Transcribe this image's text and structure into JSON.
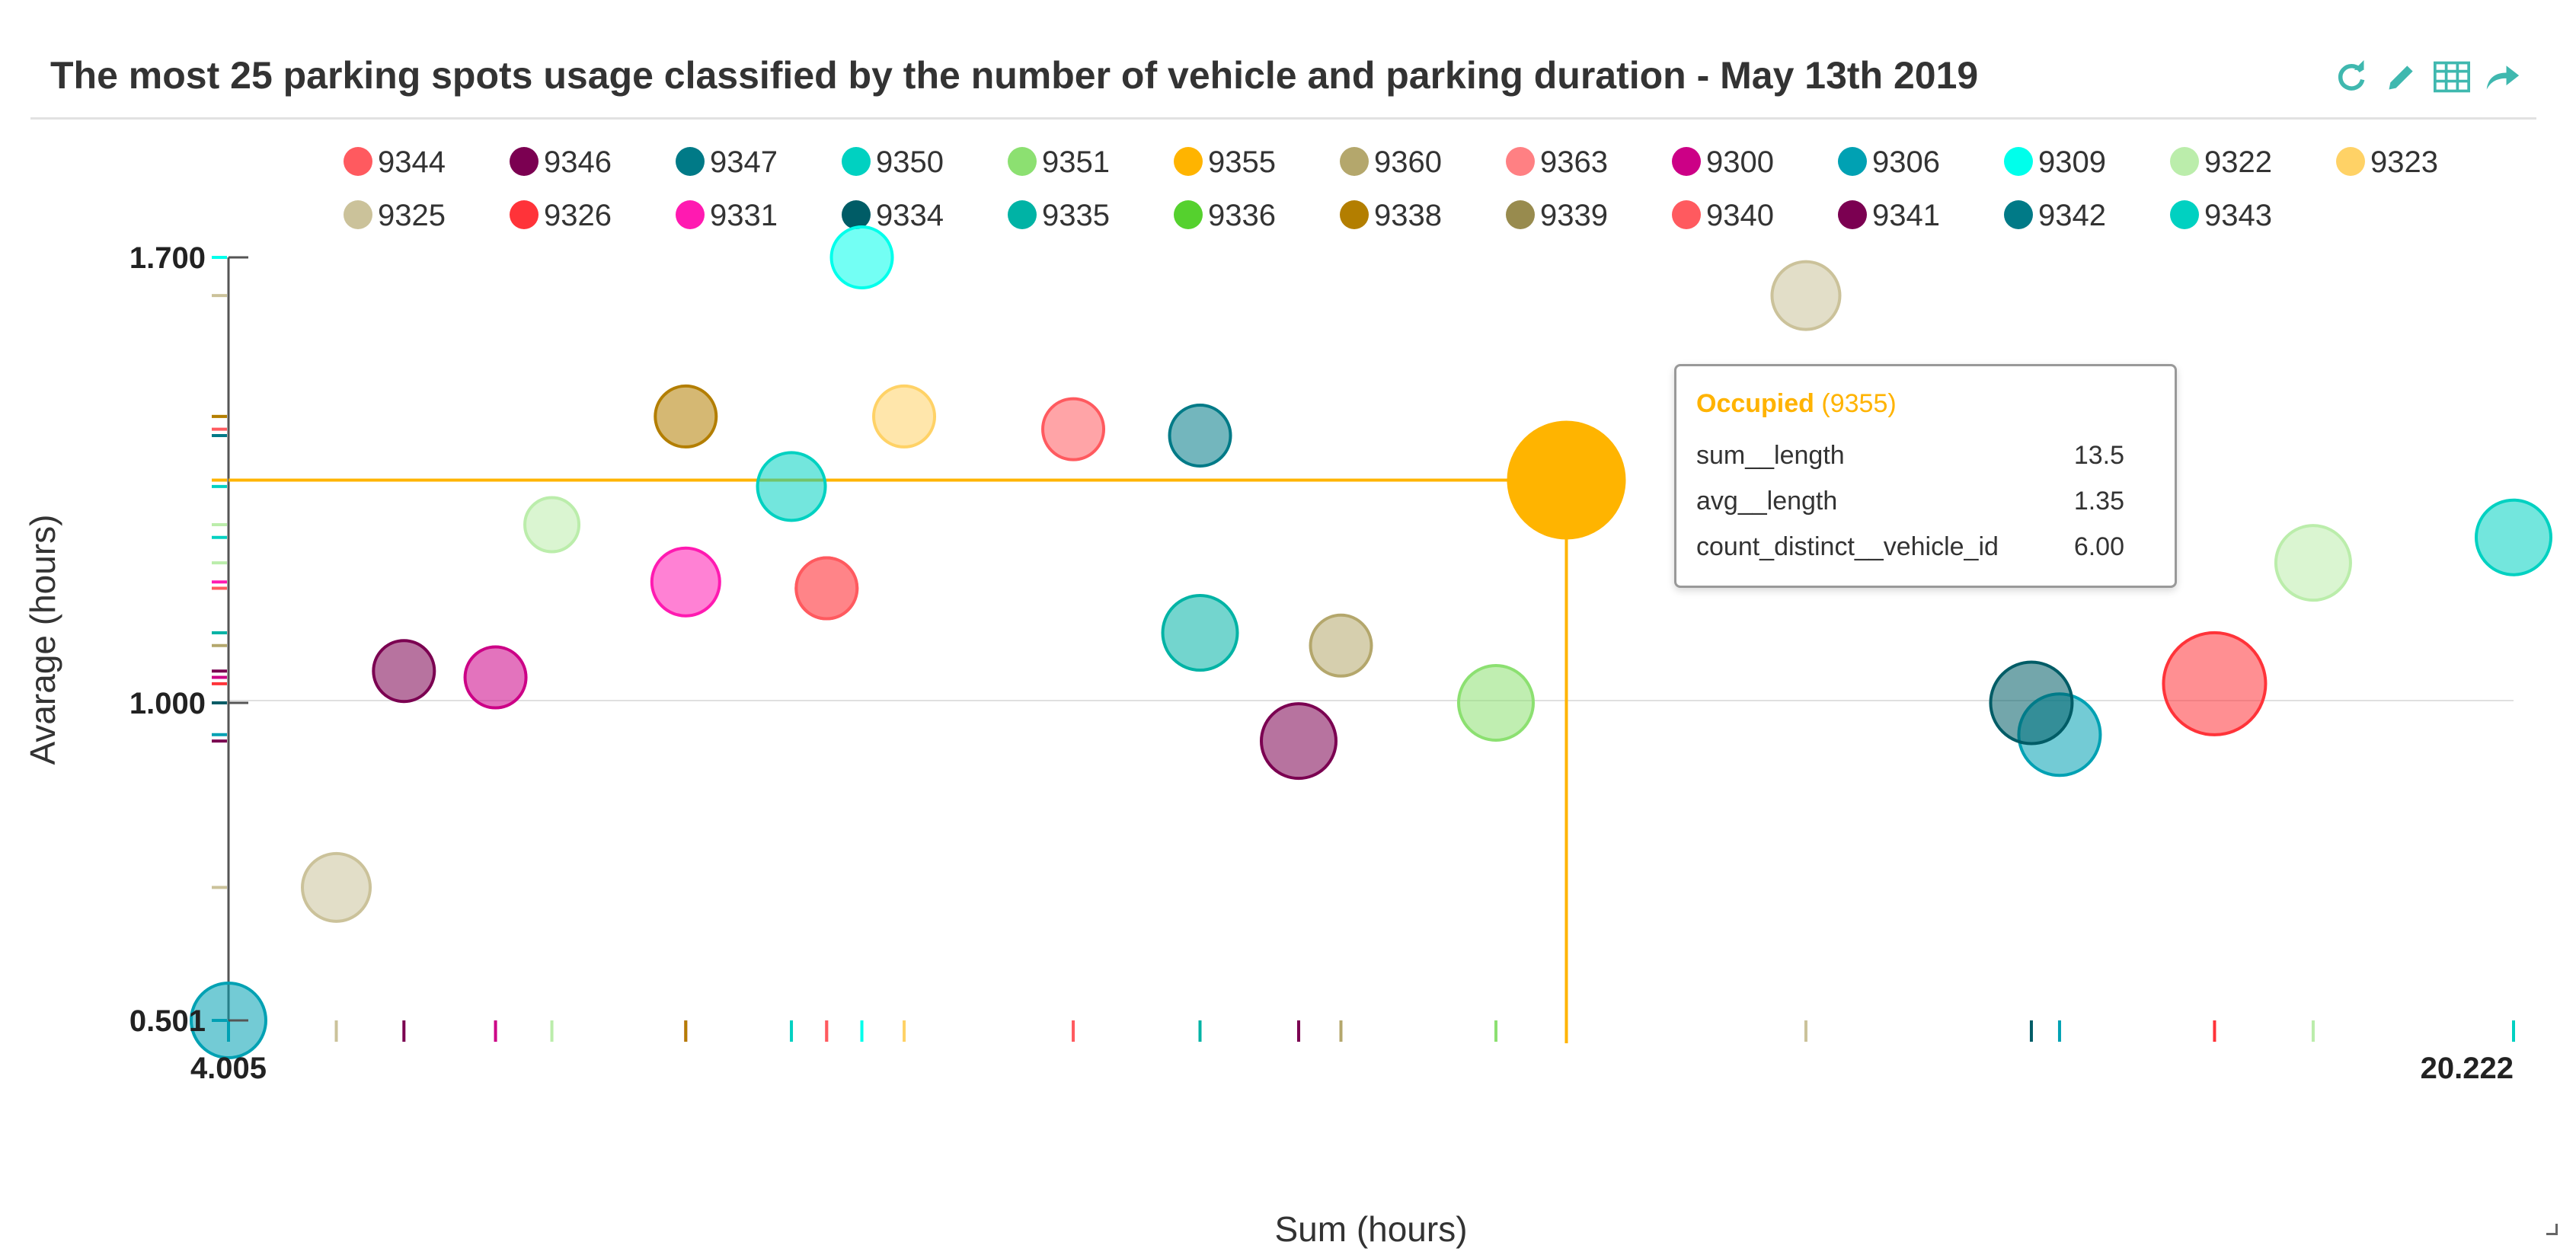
{
  "title": "The most 25 parking spots usage classified by the number of vehicle and parking duration - May 13th 2019",
  "toolbar": [
    {
      "name": "refresh-icon",
      "color": "#3fb8af"
    },
    {
      "name": "edit-pencil-icon",
      "color": "#3fb8af"
    },
    {
      "name": "table-icon",
      "color": "#3fb8af"
    },
    {
      "name": "share-arrow-icon",
      "color": "#3fb8af"
    }
  ],
  "tooltip": {
    "status": "Occupied",
    "spot": "(9355)",
    "rows": [
      {
        "label": "sum__length",
        "value": "13.5"
      },
      {
        "label": "avg__length",
        "value": "1.35"
      },
      {
        "label": "count_distinct__vehicle_id",
        "value": "6.00"
      }
    ]
  },
  "chart_data": {
    "type": "scatter",
    "title": "The most 25 parking spots usage classified by the number of vehicle and parking duration - May 13th 2019",
    "xlabel": "Sum (hours)",
    "ylabel": "Avarage (hours)",
    "xlim": [
      4.005,
      20.222
    ],
    "ylim": [
      0.501,
      1.7
    ],
    "x_tick_labels": [
      "4.005",
      "20.222"
    ],
    "y_tick_labels": [
      "1.700",
      "1.000",
      "0.501"
    ],
    "grid": "horizontal at 1.000",
    "legend_position": "top",
    "highlight": {
      "name": "9355",
      "x": 13.5,
      "y": 1.35
    },
    "series": [
      {
        "name": "9344",
        "color": "#ff5a5f",
        "points": [
          {
            "x": 10.0,
            "y": 1.43,
            "size": 2
          }
        ]
      },
      {
        "name": "9346",
        "color": "#7b0051",
        "points": [
          {
            "x": 11.6,
            "y": 0.94,
            "size": 3
          }
        ]
      },
      {
        "name": "9347",
        "color": "#007a87",
        "points": [
          {
            "x": 10.9,
            "y": 1.42,
            "size": 2
          }
        ]
      },
      {
        "name": "9350",
        "color": "#00d1c1",
        "points": [
          {
            "x": 8.0,
            "y": 1.34,
            "size": 2.5
          }
        ]
      },
      {
        "name": "9351",
        "color": "#8ce071",
        "points": [
          {
            "x": 13.0,
            "y": 1.0,
            "size": 3
          }
        ]
      },
      {
        "name": "9355",
        "color": "#ffb400",
        "points": [
          {
            "x": 13.5,
            "y": 1.35,
            "size": 6
          }
        ]
      },
      {
        "name": "9360",
        "color": "#b4a76c",
        "points": [
          {
            "x": 11.9,
            "y": 1.09,
            "size": 2
          }
        ]
      },
      {
        "name": "9363",
        "color": "#ff8083",
        "points": [
          {
            "x": 8.25,
            "y": 1.18,
            "size": 2
          }
        ]
      },
      {
        "name": "9300",
        "color": "#cc0086",
        "points": [
          {
            "x": 5.9,
            "y": 1.04,
            "size": 2
          }
        ]
      },
      {
        "name": "9306",
        "color": "#00a1b3",
        "points": [
          {
            "x": 17.0,
            "y": 0.95,
            "size": 3.5
          },
          {
            "x": 4.005,
            "y": 0.501,
            "size": 3
          }
        ]
      },
      {
        "name": "9309",
        "color": "#00ffeb",
        "points": [
          {
            "x": 8.5,
            "y": 1.7,
            "size": 2
          }
        ]
      },
      {
        "name": "9322",
        "color": "#bbedab",
        "points": [
          {
            "x": 18.8,
            "y": 1.22,
            "size": 3
          },
          {
            "x": 6.3,
            "y": 1.28,
            "size": 1.5
          }
        ]
      },
      {
        "name": "9323",
        "color": "#ffd266",
        "points": [
          {
            "x": 8.8,
            "y": 1.45,
            "size": 2
          }
        ]
      },
      {
        "name": "9325",
        "color": "#cbc29a",
        "points": [
          {
            "x": 15.2,
            "y": 1.64,
            "size": 2.5
          },
          {
            "x": 4.77,
            "y": 0.71,
            "size": 2.5
          }
        ]
      },
      {
        "name": "9326",
        "color": "#ff3339",
        "points": [
          {
            "x": 18.1,
            "y": 1.03,
            "size": 5
          }
        ]
      },
      {
        "name": "9331",
        "color": "#ff1ab1",
        "points": [
          {
            "x": 7.25,
            "y": 1.19,
            "size": 2.5
          }
        ]
      },
      {
        "name": "9334",
        "color": "#005c66",
        "points": [
          {
            "x": 16.8,
            "y": 1.0,
            "size": 3.5
          }
        ]
      },
      {
        "name": "9335",
        "color": "#00b3a5",
        "points": [
          {
            "x": 10.9,
            "y": 1.11,
            "size": 3
          }
        ]
      },
      {
        "name": "9336",
        "color": "#55d12e",
        "points": []
      },
      {
        "name": "9338",
        "color": "#b37e00",
        "points": [
          {
            "x": 7.25,
            "y": 1.45,
            "size": 2
          }
        ]
      },
      {
        "name": "9339",
        "color": "#988b4e",
        "points": []
      },
      {
        "name": "9340",
        "color": "#ff5a5f",
        "points": [
          {
            "x": 8.25,
            "y": 1.18,
            "size": 2
          }
        ]
      },
      {
        "name": "9341",
        "color": "#7b0051",
        "points": [
          {
            "x": 5.25,
            "y": 1.05,
            "size": 2
          }
        ]
      },
      {
        "name": "9342",
        "color": "#007a87",
        "points": []
      },
      {
        "name": "9343",
        "color": "#00d1c1",
        "points": [
          {
            "x": 20.222,
            "y": 1.26,
            "size": 3
          }
        ]
      }
    ]
  }
}
